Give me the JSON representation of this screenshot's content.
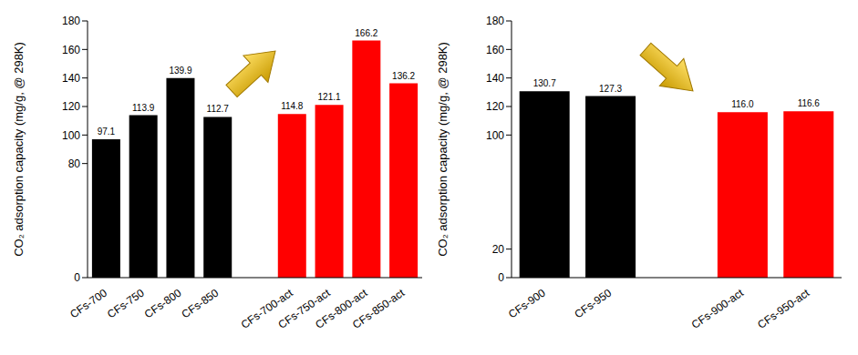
{
  "chart_data": [
    {
      "type": "bar",
      "y_label": "CO₂ adsorption capacity (mg/g, @ 298K)",
      "categories": [
        "CFs-700",
        "CFs-750",
        "CFs-800",
        "CFs-850",
        null,
        "CFs-700-act",
        "CFs-750-act",
        "CFs-800-act",
        "CFs-850-act"
      ],
      "values": [
        97.1,
        113.9,
        139.9,
        112.7,
        null,
        114.8,
        121.1,
        166.2,
        136.2
      ],
      "value_labels": [
        "97.1",
        "113.9",
        "139.9",
        "112.7",
        null,
        "114.8",
        "121.1",
        "166.2",
        "136.2"
      ],
      "colors": [
        "#000000",
        "#000000",
        "#000000",
        "#000000",
        null,
        "#ff0000",
        "#ff0000",
        "#ff0000",
        "#ff0000"
      ],
      "ylim": [
        0,
        180
      ],
      "yticks": [
        0,
        80,
        100,
        120,
        140,
        160,
        180
      ],
      "data_labels": true
    },
    {
      "type": "bar",
      "y_label": "CO₂ adsorption capacity (mg/g, @ 298K)",
      "categories": [
        "CFs-900",
        "CFs-950",
        null,
        "CFs-900-act",
        "CFs-950-act"
      ],
      "values": [
        130.7,
        127.3,
        null,
        116.0,
        116.6
      ],
      "value_labels": [
        "130.7",
        "127.3",
        null,
        "116.0",
        "116.6"
      ],
      "colors": [
        "#000000",
        "#000000",
        null,
        "#ff0000",
        "#ff0000"
      ],
      "ylim": [
        0,
        180
      ],
      "yticks": [
        0,
        20,
        100,
        120,
        140,
        160,
        180
      ],
      "data_labels": true
    }
  ]
}
